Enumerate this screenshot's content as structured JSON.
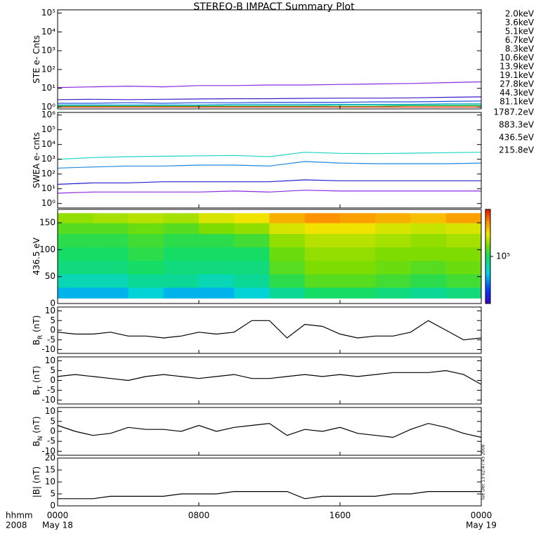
{
  "title": "STEREO-B IMPACT Summary Plot",
  "timestamp": "Tue Dec 13 02:47:43 2008",
  "xaxis": {
    "label": "hhmm",
    "year": "2008",
    "xlim": [
      0,
      24
    ],
    "xticks": [
      {
        "value": 0,
        "label": "0000"
      },
      {
        "value": 8,
        "label": "0800"
      },
      {
        "value": 16,
        "label": "1600"
      },
      {
        "value": 24,
        "label": "0000"
      }
    ],
    "dates": [
      "May 18",
      null,
      null,
      "May 19"
    ]
  },
  "chart_data": [
    {
      "type": "line",
      "ylabel": [
        "STE e- Cnts"
      ],
      "log": true,
      "legend": true,
      "ylim": [
        0.8,
        150000
      ],
      "yticks": [
        {
          "value": 1,
          "label": "10⁰"
        },
        {
          "value": 10,
          "label": "10¹"
        },
        {
          "value": 100,
          "label": "10²"
        },
        {
          "value": 1000,
          "label": "10³"
        },
        {
          "value": 10000,
          "label": "10⁴"
        },
        {
          "value": 100000,
          "label": "10⁵"
        }
      ],
      "x": [
        0,
        2,
        4,
        6,
        8,
        10,
        12,
        14,
        16,
        18,
        20,
        22,
        24
      ],
      "series": [
        {
          "name": "2.0keV",
          "color": "#8a2be2",
          "values": [
            11,
            12,
            13,
            12,
            14,
            14,
            15,
            15,
            16,
            17,
            18,
            20,
            22
          ]
        },
        {
          "name": "3.6keV",
          "color": "#3a1fc8",
          "values": [
            2.5,
            2.6,
            2.5,
            2.6,
            2.7,
            2.8,
            2.8,
            2.9,
            3,
            3,
            3.1,
            3.3,
            3.5
          ]
        },
        {
          "name": "5.1keV",
          "color": "#1f4fe0",
          "values": [
            1.6,
            1.6,
            1.7,
            1.6,
            1.7,
            1.7,
            1.8,
            1.8,
            1.8,
            1.9,
            1.9,
            2,
            2.1
          ]
        },
        {
          "name": "6.7keV",
          "color": "#1aa0d8",
          "values": [
            1.3,
            1.3,
            1.3,
            1.3,
            1.3,
            1.4,
            1.4,
            1.4,
            1.4,
            1.4,
            1.4,
            1.5,
            1.5
          ]
        },
        {
          "name": "8.3keV",
          "color": "#1cc6a8",
          "values": [
            1.2,
            1.2,
            1.2,
            1.2,
            1.2,
            1.2,
            1.2,
            1.2,
            1.3,
            1.3,
            1.3,
            1.3,
            1.3
          ]
        },
        {
          "name": "10.6keV",
          "color": "#2ec02e",
          "values": [
            1.1,
            1.1,
            1.1,
            1.1,
            1.1,
            1.1,
            1.1,
            1.1,
            1.1,
            1.1,
            1.2,
            1.2,
            1.2
          ]
        },
        {
          "name": "13.9keV",
          "color": "#7ccc00",
          "values": [
            1,
            1,
            1,
            1,
            1,
            1,
            1,
            1,
            1,
            1,
            1,
            1,
            1
          ]
        },
        {
          "name": "19.1keV",
          "color": "#c8c800",
          "values": [
            1,
            1,
            1,
            1,
            1,
            1,
            1,
            1,
            1,
            1,
            1,
            1,
            1
          ]
        },
        {
          "name": "27.8keV",
          "color": "#e8b000",
          "values": [
            1,
            1,
            1,
            1,
            1,
            1,
            1,
            1,
            1,
            1,
            1,
            1,
            1
          ]
        },
        {
          "name": "44.3keV",
          "color": "#f07800",
          "values": [
            1,
            1,
            1,
            1,
            1,
            1,
            1,
            1,
            1,
            1,
            1,
            1,
            1
          ]
        },
        {
          "name": "81.1keV",
          "color": "#e02a10",
          "values": [
            1,
            1,
            1,
            1,
            1,
            1,
            1,
            1,
            1,
            1,
            1,
            1,
            1
          ]
        }
      ]
    },
    {
      "type": "line",
      "ylabel": [
        "SWEA e- cnts"
      ],
      "log": true,
      "legend": true,
      "ylim": [
        0.5,
        1500000
      ],
      "yticks": [
        {
          "value": 1,
          "label": "10⁰"
        },
        {
          "value": 10,
          "label": "10¹"
        },
        {
          "value": 100,
          "label": "10²"
        },
        {
          "value": 1000,
          "label": "10³"
        },
        {
          "value": 10000,
          "label": "10⁴"
        },
        {
          "value": 100000,
          "label": "10⁵"
        },
        {
          "value": 1000000,
          "label": "10⁶"
        }
      ],
      "x": [
        0,
        2,
        4,
        6,
        8,
        10,
        12,
        14,
        16,
        18,
        20,
        22,
        24
      ],
      "series": [
        {
          "name": "1787.2eV",
          "color": "#8a2be2",
          "values": [
            5,
            6,
            6,
            6,
            6,
            7,
            6,
            8,
            7,
            7,
            7,
            7,
            7
          ]
        },
        {
          "name": "883.3eV",
          "color": "#2020d0",
          "values": [
            20,
            25,
            25,
            30,
            30,
            30,
            30,
            40,
            35,
            35,
            35,
            35,
            35
          ]
        },
        {
          "name": "436.5eV",
          "color": "#2088e0",
          "values": [
            250,
            300,
            350,
            350,
            400,
            400,
            350,
            700,
            550,
            500,
            500,
            500,
            550
          ]
        },
        {
          "name": "215.8eV",
          "color": "#20d4c4",
          "values": [
            1000,
            1300,
            1500,
            1600,
            1700,
            1800,
            1500,
            3000,
            2500,
            2400,
            2600,
            2800,
            3000
          ]
        }
      ]
    },
    {
      "type": "heatmap",
      "ylabel": [
        "436.5 eV"
      ],
      "ylim": [
        0,
        175
      ],
      "yticks": [
        0,
        50,
        100,
        150
      ],
      "zlim": [
        20000,
        500000
      ],
      "zticks": [
        {
          "value": 100000,
          "label": "10⁵"
        }
      ],
      "x": [
        0,
        2,
        4,
        6,
        8,
        10,
        12,
        14,
        16,
        18,
        20,
        22,
        24
      ],
      "y": [
        10,
        30,
        55,
        80,
        105,
        130,
        150,
        168
      ],
      "values": [
        [
          50000,
          50000,
          60000,
          50000,
          50000,
          60000,
          80000,
          100000,
          100000,
          90000,
          80000,
          90000
        ],
        [
          70000,
          70000,
          80000,
          80000,
          70000,
          80000,
          110000,
          130000,
          130000,
          120000,
          110000,
          120000
        ],
        [
          90000,
          90000,
          100000,
          90000,
          90000,
          90000,
          130000,
          150000,
          150000,
          140000,
          130000,
          140000
        ],
        [
          100000,
          100000,
          110000,
          100000,
          100000,
          100000,
          140000,
          160000,
          160000,
          150000,
          150000,
          150000
        ],
        [
          110000,
          110000,
          120000,
          110000,
          110000,
          120000,
          160000,
          180000,
          180000,
          170000,
          160000,
          170000
        ],
        [
          130000,
          130000,
          140000,
          130000,
          150000,
          160000,
          200000,
          220000,
          220000,
          200000,
          190000,
          200000
        ],
        [
          160000,
          170000,
          180000,
          170000,
          200000,
          220000,
          280000,
          320000,
          300000,
          280000,
          260000,
          300000
        ]
      ]
    },
    {
      "type": "line",
      "ylabel": [
        "B",
        "R",
        " (nT)"
      ],
      "ylim": [
        -12,
        12
      ],
      "yticks": [
        -10,
        -5,
        0,
        5,
        10
      ],
      "x": [
        0,
        1,
        2,
        3,
        4,
        5,
        6,
        7,
        8,
        9,
        10,
        11,
        12,
        13,
        14,
        15,
        16,
        17,
        18,
        19,
        20,
        21,
        22,
        23,
        24
      ],
      "series": [
        {
          "name": "BR",
          "color": "#000000",
          "values": [
            -1,
            -2,
            -2,
            -1,
            -3,
            -3,
            -4,
            -3,
            -1,
            -2,
            -1,
            5,
            5,
            -4,
            3,
            2,
            -2,
            -4,
            -3,
            -3,
            -1,
            5,
            0,
            -5,
            -4
          ]
        }
      ]
    },
    {
      "type": "line",
      "ylabel": [
        "B",
        "T",
        " (nT)"
      ],
      "ylim": [
        -12,
        12
      ],
      "yticks": [
        -10,
        -5,
        0,
        5,
        10
      ],
      "x": [
        0,
        1,
        2,
        3,
        4,
        5,
        6,
        7,
        8,
        9,
        10,
        11,
        12,
        13,
        14,
        15,
        16,
        17,
        18,
        19,
        20,
        21,
        22,
        23,
        24
      ],
      "series": [
        {
          "name": "BT",
          "color": "#000000",
          "values": [
            2,
            3,
            2,
            1,
            0,
            2,
            3,
            2,
            1,
            2,
            3,
            1,
            1,
            2,
            3,
            2,
            3,
            2,
            3,
            4,
            4,
            4,
            5,
            3,
            -2
          ]
        }
      ]
    },
    {
      "type": "line",
      "ylabel": [
        "B",
        "N",
        " (nT)"
      ],
      "ylim": [
        -12,
        12
      ],
      "yticks": [
        -10,
        -5,
        0,
        5,
        10
      ],
      "x": [
        0,
        1,
        2,
        3,
        4,
        5,
        6,
        7,
        8,
        9,
        10,
        11,
        12,
        13,
        14,
        15,
        16,
        17,
        18,
        19,
        20,
        21,
        22,
        23,
        24
      ],
      "series": [
        {
          "name": "BN",
          "color": "#000000",
          "values": [
            3,
            0,
            -2,
            -1,
            2,
            1,
            1,
            0,
            3,
            0,
            2,
            3,
            4,
            -2,
            1,
            0,
            2,
            -1,
            -2,
            -3,
            1,
            4,
            2,
            -1,
            -3
          ]
        }
      ]
    },
    {
      "type": "line",
      "ylabel": [
        "|B| (nT)"
      ],
      "ylim": [
        0,
        20
      ],
      "yticks": [
        0,
        5,
        10,
        15,
        20
      ],
      "x": [
        0,
        1,
        2,
        3,
        4,
        5,
        6,
        7,
        8,
        9,
        10,
        11,
        12,
        13,
        14,
        15,
        16,
        17,
        18,
        19,
        20,
        21,
        22,
        23,
        24
      ],
      "series": [
        {
          "name": "B",
          "color": "#000000",
          "values": [
            3,
            3,
            3,
            4,
            4,
            4,
            4,
            5,
            5,
            5,
            6,
            6,
            6,
            6,
            3,
            4,
            4,
            4,
            4,
            5,
            5,
            6,
            6,
            6,
            6
          ]
        }
      ]
    }
  ]
}
